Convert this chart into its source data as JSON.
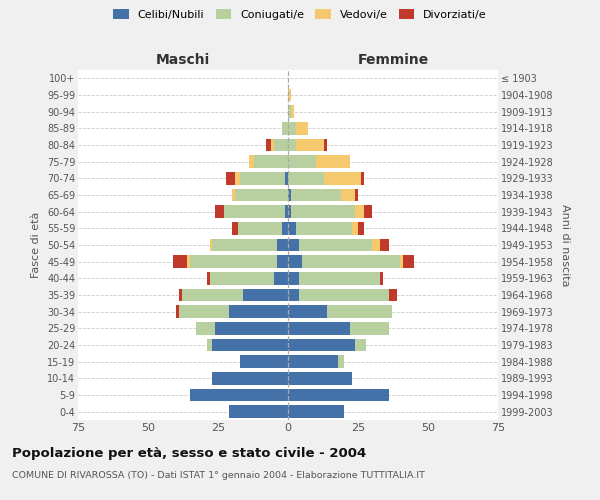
{
  "age_groups": [
    "0-4",
    "5-9",
    "10-14",
    "15-19",
    "20-24",
    "25-29",
    "30-34",
    "35-39",
    "40-44",
    "45-49",
    "50-54",
    "55-59",
    "60-64",
    "65-69",
    "70-74",
    "75-79",
    "80-84",
    "85-89",
    "90-94",
    "95-99",
    "100+"
  ],
  "birth_years": [
    "1999-2003",
    "1994-1998",
    "1989-1993",
    "1984-1988",
    "1979-1983",
    "1974-1978",
    "1969-1973",
    "1964-1968",
    "1959-1963",
    "1954-1958",
    "1949-1953",
    "1944-1948",
    "1939-1943",
    "1934-1938",
    "1929-1933",
    "1924-1928",
    "1919-1923",
    "1914-1918",
    "1909-1913",
    "1904-1908",
    "≤ 1903"
  ],
  "maschi": {
    "celibi": [
      21,
      35,
      27,
      17,
      27,
      26,
      21,
      16,
      5,
      4,
      4,
      2,
      1,
      0,
      1,
      0,
      0,
      0,
      0,
      0,
      0
    ],
    "coniugati": [
      0,
      0,
      0,
      0,
      2,
      7,
      18,
      22,
      23,
      31,
      23,
      16,
      22,
      19,
      16,
      12,
      5,
      2,
      0,
      0,
      0
    ],
    "vedovi": [
      0,
      0,
      0,
      0,
      0,
      0,
      0,
      0,
      0,
      1,
      1,
      0,
      0,
      1,
      2,
      2,
      1,
      0,
      0,
      0,
      0
    ],
    "divorziati": [
      0,
      0,
      0,
      0,
      0,
      0,
      1,
      1,
      1,
      5,
      0,
      2,
      3,
      0,
      3,
      0,
      2,
      0,
      0,
      0,
      0
    ]
  },
  "femmine": {
    "nubili": [
      20,
      36,
      23,
      18,
      24,
      22,
      14,
      4,
      4,
      5,
      4,
      3,
      1,
      1,
      0,
      0,
      0,
      0,
      0,
      0,
      0
    ],
    "coniugate": [
      0,
      0,
      0,
      2,
      4,
      14,
      23,
      32,
      29,
      35,
      26,
      20,
      23,
      18,
      13,
      10,
      3,
      3,
      1,
      0,
      0
    ],
    "vedove": [
      0,
      0,
      0,
      0,
      0,
      0,
      0,
      0,
      0,
      1,
      3,
      2,
      3,
      5,
      13,
      12,
      10,
      4,
      1,
      1,
      0
    ],
    "divorziate": [
      0,
      0,
      0,
      0,
      0,
      0,
      0,
      3,
      1,
      4,
      3,
      2,
      3,
      1,
      1,
      0,
      1,
      0,
      0,
      0,
      0
    ]
  },
  "colors": {
    "celibi": "#4472a8",
    "coniugati": "#b8cfa0",
    "vedovi": "#f5c96e",
    "divorziati": "#c0392b"
  },
  "title": "Popolazione per età, sesso e stato civile - 2004",
  "subtitle": "COMUNE DI RIVAROSSA (TO) - Dati ISTAT 1° gennaio 2004 - Elaborazione TUTTITALIA.IT",
  "xlabel_left": "Maschi",
  "xlabel_right": "Femmine",
  "ylabel_left": "Fasce di età",
  "ylabel_right": "Anni di nascita",
  "xlim": 75,
  "legend_labels": [
    "Celibi/Nubili",
    "Coniugati/e",
    "Vedovi/e",
    "Divorziati/e"
  ],
  "bg_color": "#f0f0f0",
  "plot_bg": "#ffffff"
}
